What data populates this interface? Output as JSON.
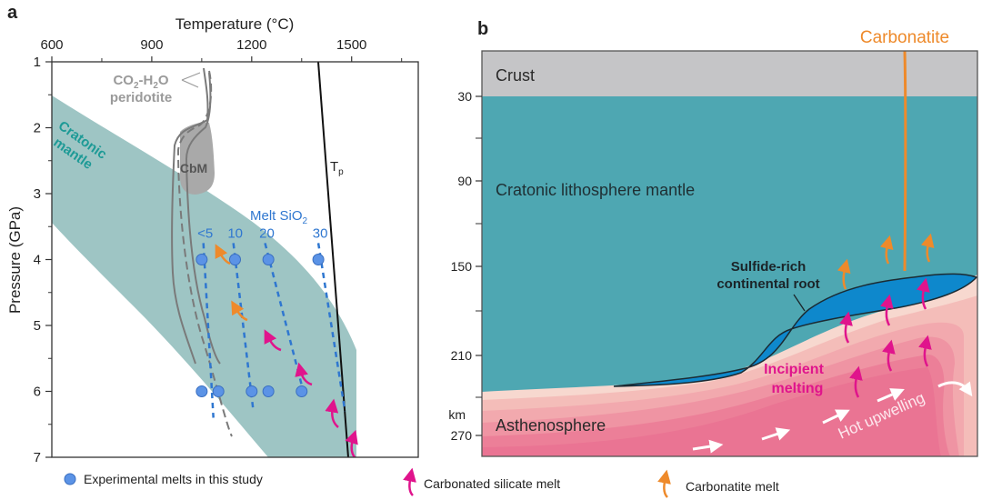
{
  "panel_a": {
    "label": "a",
    "x_axis_title": "Temperature (°C)",
    "y_axis_title": "Pressure (GPa)",
    "x_ticks": [
      "600",
      "900",
      "1200",
      "1500"
    ],
    "y_ticks": [
      "1",
      "2",
      "3",
      "4",
      "5",
      "6",
      "7"
    ],
    "annotations": {
      "peridotite_line1": "CO",
      "peridotite_sub1": "2",
      "peridotite_mid": "-H",
      "peridotite_sub2": "2",
      "peridotite_end": "O",
      "peridotite_line2": "peridotite",
      "cratonic_1": "Cratonic",
      "cratonic_2": "mantle",
      "cbm": "CbM",
      "tp_main": "T",
      "tp_sub": "p",
      "melt_sio2_main": "Melt SiO",
      "melt_sio2_sub": "2",
      "sio2_levels": [
        "<5",
        "10",
        "20",
        "30"
      ]
    },
    "legend": {
      "experimental": "Experimental melts in this study",
      "carbonated_silicate": "Carbonated silicate melt",
      "carbonatite": "Carbonatite melt"
    }
  },
  "panel_b": {
    "label": "b",
    "depth_ticks": [
      "30",
      "90",
      "150",
      "210",
      "270"
    ],
    "depth_unit": "km",
    "layers": {
      "crust": "Crust",
      "lithosphere": "Cratonic lithosphere mantle",
      "root_1": "Sulfide-rich",
      "root_2": "continental root",
      "incipient_1": "Incipient",
      "incipient_2": "melting",
      "asthenosphere": "Asthenosphere",
      "upwelling": "Hot upwelling",
      "carbonatite": "Carbonatite"
    }
  },
  "colors": {
    "cratonic_band": "#9ec5c4",
    "cratonic_text": "#1d9a96",
    "cbm_gray": "#a9a9a9",
    "melt_blue": "#2f77d0",
    "dot_blue": "#5b93e6",
    "orange": "#ee8a2b",
    "magenta": "#e0148c",
    "crust_gray": "#c5c5c7",
    "lithosphere_teal": "#4ea7b2",
    "root_blue": "#0e88cc"
  },
  "chart_data": {
    "type": "scatter",
    "title": "",
    "xlabel": "Temperature (°C)",
    "ylabel": "Pressure (GPa)",
    "xlim": [
      600,
      1700
    ],
    "ylim": [
      7,
      1
    ],
    "x_tick_values": [
      600,
      900,
      1200,
      1500
    ],
    "y_tick_values": [
      1,
      2,
      3,
      4,
      5,
      6,
      7
    ],
    "series": [
      {
        "name": "Experimental melts in this study",
        "points": [
          {
            "T": 1050,
            "P": 4
          },
          {
            "T": 1150,
            "P": 4
          },
          {
            "T": 1250,
            "P": 4
          },
          {
            "T": 1400,
            "P": 4
          },
          {
            "T": 1050,
            "P": 6
          },
          {
            "T": 1100,
            "P": 6
          },
          {
            "T": 1200,
            "P": 6
          },
          {
            "T": 1250,
            "P": 6
          },
          {
            "T": 1350,
            "P": 6
          }
        ]
      }
    ],
    "lines": [
      {
        "name": "Tp",
        "points": [
          {
            "T": 1400,
            "P": 1
          },
          {
            "T": 1480,
            "P": 7
          }
        ]
      },
      {
        "name": "Melt SiO2 <5",
        "points": [
          {
            "T": 1055,
            "P": 3.75
          },
          {
            "T": 1085,
            "P": 6.4
          }
        ]
      },
      {
        "name": "Melt SiO2 10",
        "points": [
          {
            "T": 1145,
            "P": 3.75
          },
          {
            "T": 1205,
            "P": 6.3
          }
        ]
      },
      {
        "name": "Melt SiO2 20",
        "points": [
          {
            "T": 1240,
            "P": 3.75
          },
          {
            "T": 1360,
            "P": 6.1
          }
        ]
      },
      {
        "name": "Melt SiO2 30",
        "points": [
          {
            "T": 1400,
            "P": 3.75
          },
          {
            "T": 1480,
            "P": 6.3
          }
        ]
      }
    ],
    "regions": [
      {
        "name": "Cratonic mantle",
        "upper_bound": [
          {
            "T": 600,
            "P": 1.5
          },
          {
            "T": 1100,
            "P": 3.3
          },
          {
            "T": 1450,
            "P": 6.5
          }
        ],
        "lower_bound": [
          {
            "T": 600,
            "P": 2.5
          },
          {
            "T": 1000,
            "P": 4.4
          },
          {
            "T": 1300,
            "P": 7
          }
        ]
      },
      {
        "name": "CbM",
        "center": {
          "T": 1040,
          "P": 2.5
        }
      }
    ]
  }
}
